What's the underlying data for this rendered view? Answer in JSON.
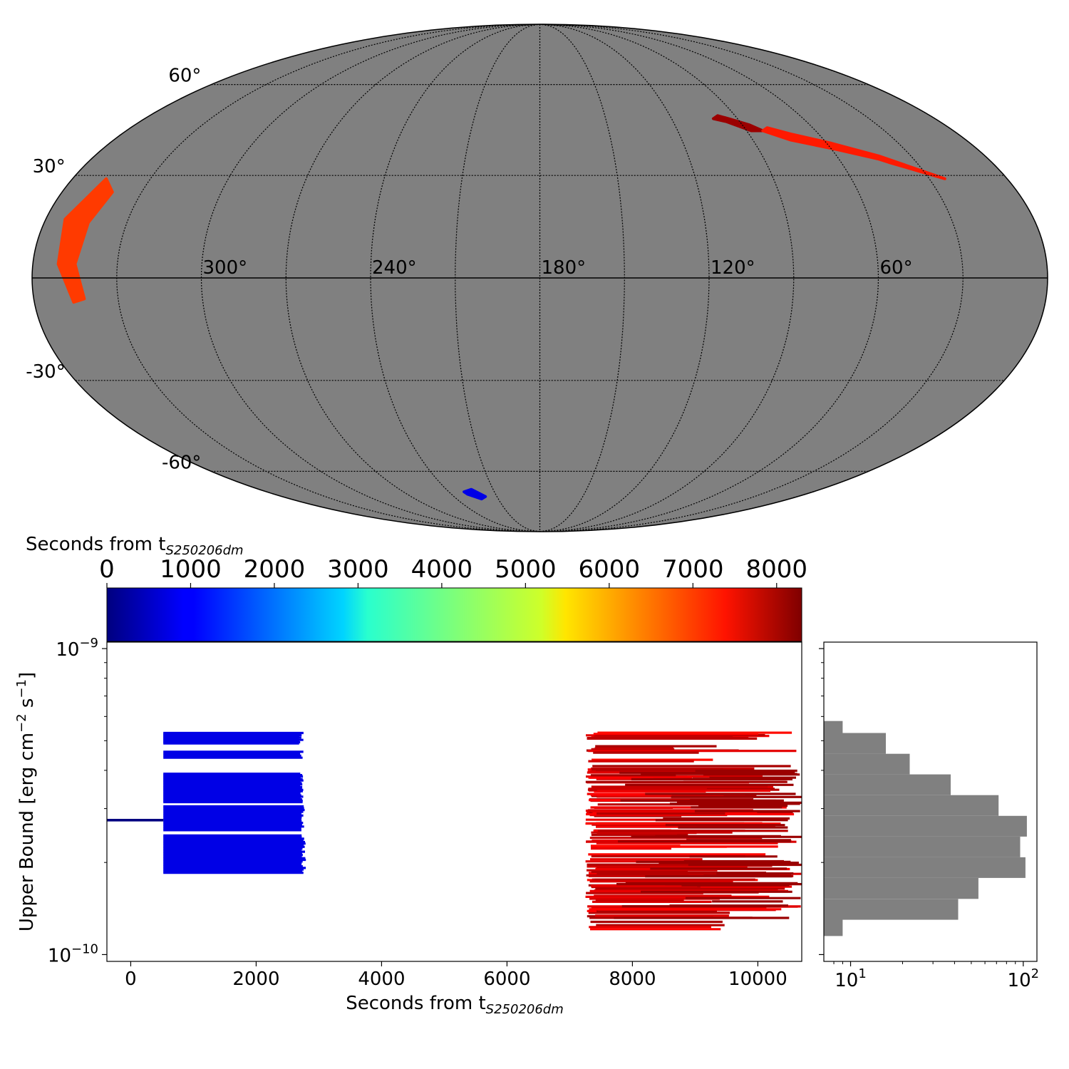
{
  "chart_data": [
    {
      "type": "scatter",
      "panel": "sky-map",
      "projection": "mollweide",
      "background_color": "#808080",
      "lat_labels": [
        "60°",
        "30°",
        "-30°",
        "-60°"
      ],
      "lat_values": [
        60,
        30,
        -30,
        -60
      ],
      "lon_labels": [
        "300°",
        "240°",
        "180°",
        "120°",
        "60°"
      ],
      "lon_values": [
        300,
        240,
        180,
        120,
        60
      ],
      "regions": [
        {
          "color": "#0000e6",
          "points": [
            [
              230,
              -68
            ],
            [
              229,
              -69
            ],
            [
              222,
              -71
            ],
            [
              218,
              -70
            ],
            [
              224,
              -67
            ]
          ]
        },
        {
          "color": "#ff3a00",
          "points": [
            [
              347,
              29
            ],
            [
              353,
              17
            ],
            [
              351,
              4
            ],
            [
              346,
              -7
            ],
            [
              342,
              -6
            ],
            [
              345,
              4
            ],
            [
              344,
              16
            ],
            [
              341,
              25
            ]
          ]
        },
        {
          "color": "#9b0000",
          "points": [
            [
              101,
              48
            ],
            [
              96,
              47
            ],
            [
              88,
              44
            ],
            [
              83,
              44
            ],
            [
              87,
              46
            ],
            [
              94,
              48
            ],
            [
              98,
              49
            ]
          ]
        },
        {
          "color": "#ff1a00",
          "points": [
            [
              83,
              44
            ],
            [
              74,
              41
            ],
            [
              58,
              38
            ],
            [
              44,
              35
            ],
            [
              41,
              34
            ],
            [
              24,
              29
            ],
            [
              43,
              36
            ],
            [
              58,
              40
            ],
            [
              72,
              43
            ],
            [
              80,
              45
            ]
          ]
        }
      ]
    },
    {
      "type": "bar",
      "panel": "upper-bound-vs-time",
      "xlabel": "Seconds from t",
      "xlabel_sub": "S250206dm",
      "ylabel": "Upper Bound [erg cm",
      "ylabel_sup1": "−2",
      "ylabel_mid": " s",
      "ylabel_sup2": "−1",
      "ylabel_end": "]",
      "xlim": [
        -380,
        10700
      ],
      "ylim": [
        9.5e-11,
        1.05e-09
      ],
      "yscale": "log",
      "x_ticks": [
        "0",
        "2000",
        "4000",
        "6000",
        "8000",
        "10000"
      ],
      "x_tick_values": [
        0,
        2000,
        4000,
        6000,
        8000,
        10000
      ],
      "y_ticks": [
        "10",
        "10"
      ],
      "y_tick_sups": [
        "−9",
        "−10"
      ],
      "y_tick_values": [
        1e-09,
        1e-10
      ],
      "colormap": "jet",
      "color_vmin": 0,
      "color_vmax": 8000,
      "colorbar_label": "Seconds from t",
      "colorbar_label_sub": "S250206dm",
      "colorbar_ticks": [
        "0",
        "1000",
        "2000",
        "3000",
        "4000",
        "5000",
        "6000",
        "7000",
        "8000"
      ],
      "colorbar_tick_values": [
        0,
        1000,
        2000,
        3000,
        4000,
        5000,
        6000,
        7000,
        8000
      ],
      "segments_note": "each segment: [start_seconds, end_seconds, upper_bound]",
      "segments": {
        "early_groups": [
          {
            "start": 520,
            "ends": [
              2680,
              2760
            ],
            "rows": 10,
            "ub": [
              5.3e-10,
              4.9e-10
            ]
          },
          {
            "start": 520,
            "ends": [
              2700,
              2760
            ],
            "rows": 4,
            "ub": [
              4.6e-10,
              4.4e-10
            ]
          },
          {
            "start": 520,
            "ends": [
              2700,
              2760
            ],
            "rows": 22,
            "ub": [
              3.9e-10,
              3.15e-10
            ]
          },
          {
            "start": 520,
            "ends": [
              2720,
              2780
            ],
            "rows": 14,
            "ub": [
              3.05e-10,
              2.55e-10
            ]
          },
          {
            "start": 520,
            "ends": [
              2720,
              2800
            ],
            "rows": 24,
            "ub": [
              2.45e-10,
              1.85e-10
            ]
          }
        ],
        "single": [
          {
            "start": -380,
            "end": 520,
            "ub": 2.75e-10,
            "color_time": 0
          }
        ],
        "late_band": {
          "start_range": [
            7250,
            7450
          ],
          "end_range": [
            8600,
            10700
          ],
          "ub_range": [
            1.2e-10,
            5.4e-10
          ],
          "rows": 150,
          "color_time_range": [
            6900,
            7700
          ]
        },
        "late_dark": {
          "start_range": [
            7700,
            9400
          ],
          "end_range": [
            10300,
            10720
          ],
          "ub_range": [
            1.3e-10,
            4.3e-10
          ],
          "rows": 45,
          "color_time": 8000
        }
      }
    },
    {
      "type": "bar",
      "panel": "histogram",
      "orientation": "horizontal",
      "color": "#808080",
      "xscale": "log",
      "xlim": [
        7,
        120
      ],
      "x_ticks": [
        "10",
        "10"
      ],
      "x_tick_sups": [
        "1",
        "2"
      ],
      "x_tick_values": [
        10,
        100
      ],
      "bins": [
        {
          "lo": 1.15e-10,
          "hi": 1.3e-10,
          "count": 9
        },
        {
          "lo": 1.3e-10,
          "hi": 1.52e-10,
          "count": 42
        },
        {
          "lo": 1.52e-10,
          "hi": 1.78e-10,
          "count": 55
        },
        {
          "lo": 1.78e-10,
          "hi": 2.08e-10,
          "count": 103
        },
        {
          "lo": 2.08e-10,
          "hi": 2.43e-10,
          "count": 96
        },
        {
          "lo": 2.43e-10,
          "hi": 2.84e-10,
          "count": 105
        },
        {
          "lo": 2.84e-10,
          "hi": 3.32e-10,
          "count": 72
        },
        {
          "lo": 3.32e-10,
          "hi": 3.88e-10,
          "count": 38
        },
        {
          "lo": 3.88e-10,
          "hi": 4.53e-10,
          "count": 22
        },
        {
          "lo": 4.53e-10,
          "hi": 5.3e-10,
          "count": 16
        },
        {
          "lo": 5.3e-10,
          "hi": 5.8e-10,
          "count": 9
        }
      ]
    }
  ]
}
